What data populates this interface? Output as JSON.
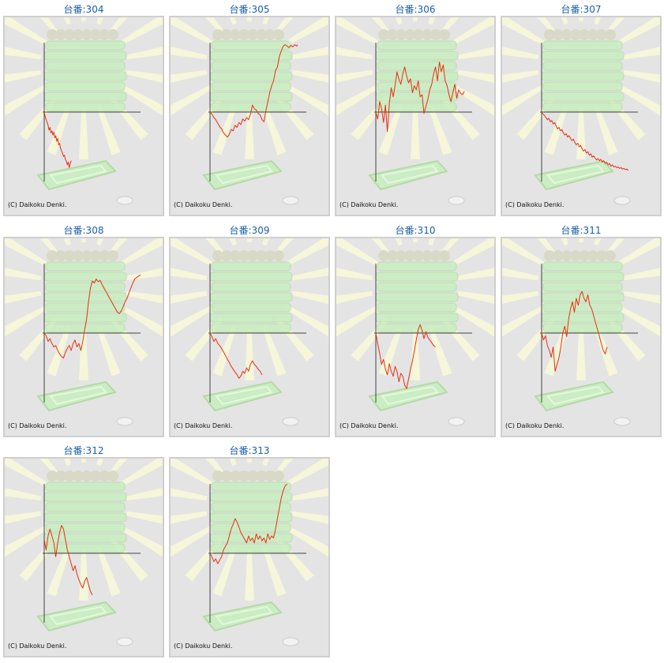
{
  "copyright_text": "(C) Daikoku Denki.",
  "colors": {
    "line": "#e83010",
    "axis": "#444444",
    "title": "#1a5fa8",
    "panel": "#e4e4e4",
    "art": "#c8eec0"
  },
  "chart_data": [
    {
      "type": "line",
      "title": "台番:304",
      "xlim": [
        0,
        100
      ],
      "ylim": [
        -100,
        100
      ],
      "x": [
        0,
        1,
        2,
        3,
        4,
        5,
        6,
        7,
        8,
        9,
        10,
        11,
        12,
        13,
        14,
        15,
        16,
        17,
        18,
        19,
        20,
        21,
        22,
        23,
        24,
        25,
        26,
        27,
        28
      ],
      "y": [
        0,
        -6,
        -11,
        -15,
        -19,
        -26,
        -22,
        -30,
        -27,
        -33,
        -29,
        -37,
        -34,
        -42,
        -38,
        -47,
        -45,
        -52,
        -56,
        -59,
        -64,
        -62,
        -68,
        -71,
        -76,
        -72,
        -80,
        -74,
        -70
      ]
    },
    {
      "type": "line",
      "title": "台番:305",
      "xlim": [
        0,
        100
      ],
      "ylim": [
        -100,
        100
      ],
      "x": [
        0,
        2,
        4,
        6,
        8,
        10,
        12,
        14,
        16,
        18,
        20,
        22,
        24,
        26,
        28,
        30,
        32,
        34,
        36,
        38,
        40,
        42,
        44,
        46,
        48,
        50,
        52,
        54,
        56,
        58,
        60,
        62,
        64,
        66,
        68,
        70,
        72,
        74,
        76,
        78,
        80,
        82,
        84,
        86,
        88,
        90,
        91
      ],
      "y": [
        0,
        -3,
        -8,
        -11,
        -16,
        -21,
        -24,
        -30,
        -33,
        -36,
        -32,
        -25,
        -27,
        -19,
        -22,
        -15,
        -18,
        -10,
        -13,
        -8,
        -11,
        -3,
        10,
        5,
        3,
        -2,
        -4,
        -11,
        -14,
        2,
        15,
        28,
        38,
        45,
        60,
        65,
        80,
        88,
        95,
        97,
        95,
        93,
        96,
        94,
        97,
        95,
        97
      ]
    },
    {
      "type": "line",
      "title": "台番:306",
      "xlim": [
        0,
        100
      ],
      "ylim": [
        -100,
        100
      ],
      "x": [
        0,
        2,
        4,
        6,
        8,
        10,
        12,
        14,
        16,
        18,
        20,
        22,
        24,
        26,
        28,
        30,
        32,
        34,
        36,
        38,
        40,
        42,
        44,
        46,
        48,
        50,
        52,
        54,
        56,
        58,
        60,
        62,
        64,
        66,
        68,
        70,
        72,
        74,
        76,
        78,
        80,
        82,
        84,
        86,
        88,
        90,
        92
      ],
      "y": [
        0,
        -10,
        15,
        5,
        -15,
        10,
        -28,
        12,
        35,
        22,
        38,
        58,
        47,
        40,
        55,
        65,
        52,
        42,
        48,
        28,
        38,
        32,
        45,
        22,
        25,
        -2,
        8,
        18,
        32,
        40,
        55,
        65,
        45,
        72,
        58,
        68,
        45,
        38,
        25,
        15,
        28,
        40,
        20,
        32,
        27,
        25,
        30
      ]
    },
    {
      "type": "line",
      "title": "台番:307",
      "xlim": [
        0,
        100
      ],
      "ylim": [
        -100,
        100
      ],
      "x": [
        0,
        1.5,
        3,
        4.5,
        6,
        7.5,
        9,
        10.5,
        12,
        13.5,
        15,
        16.5,
        18,
        19.5,
        21,
        22.5,
        24,
        25.5,
        27,
        28.5,
        30,
        31.5,
        33,
        34.5,
        36,
        37.5,
        39,
        40.5,
        42,
        43.5,
        45,
        46.5,
        48,
        49.5,
        51,
        52.5,
        54,
        55.5,
        57,
        58.5,
        60,
        61.5,
        63,
        64.5,
        66,
        67.5,
        69,
        70.5,
        72,
        73.5,
        75,
        76.5,
        78,
        79.5,
        81,
        82.5,
        84,
        85.5,
        87,
        88.5,
        90
      ],
      "y": [
        0,
        -3,
        -5,
        -8,
        -11,
        -9,
        -14,
        -12,
        -17,
        -15,
        -20,
        -24,
        -22,
        -27,
        -25,
        -30,
        -33,
        -31,
        -36,
        -34,
        -38,
        -41,
        -39,
        -44,
        -47,
        -45,
        -50,
        -48,
        -53,
        -56,
        -54,
        -59,
        -57,
        -62,
        -60,
        -65,
        -63,
        -66,
        -69,
        -67,
        -70,
        -68,
        -72,
        -70,
        -74,
        -72,
        -76,
        -74,
        -78,
        -76,
        -79,
        -78,
        -80,
        -79,
        -81,
        -80,
        -82,
        -81,
        -83,
        -82,
        -84
      ]
    },
    {
      "type": "line",
      "title": "台番:308",
      "xlim": [
        0,
        100
      ],
      "ylim": [
        -100,
        100
      ],
      "x": [
        0,
        2,
        4,
        6,
        8,
        10,
        12,
        14,
        16,
        18,
        20,
        22,
        24,
        26,
        28,
        30,
        32,
        34,
        36,
        38,
        40,
        42,
        44,
        46,
        48,
        50,
        52,
        54,
        56,
        58,
        60,
        62,
        64,
        66,
        68,
        70,
        72,
        74,
        76,
        78,
        80,
        82,
        84,
        86,
        88,
        90,
        92,
        94,
        96,
        98,
        100
      ],
      "y": [
        0,
        -4,
        -12,
        -8,
        -15,
        -20,
        -18,
        -25,
        -30,
        -34,
        -36,
        -28,
        -22,
        -18,
        -25,
        -15,
        -10,
        -20,
        -15,
        -25,
        -12,
        5,
        20,
        45,
        65,
        75,
        72,
        78,
        74,
        76,
        70,
        65,
        60,
        55,
        50,
        45,
        40,
        35,
        30,
        28,
        32,
        38,
        45,
        50,
        58,
        65,
        72,
        78,
        80,
        82,
        84
      ]
    },
    {
      "type": "line",
      "title": "台番:309",
      "xlim": [
        0,
        100
      ],
      "ylim": [
        -100,
        100
      ],
      "x": [
        0,
        2,
        4,
        6,
        8,
        10,
        12,
        14,
        16,
        18,
        20,
        22,
        24,
        26,
        28,
        30,
        32,
        34,
        36,
        38,
        40,
        42,
        44,
        46,
        48,
        50,
        52,
        54
      ],
      "y": [
        0,
        -5,
        -12,
        -8,
        -15,
        -18,
        -22,
        -27,
        -32,
        -38,
        -42,
        -48,
        -52,
        -56,
        -60,
        -65,
        -62,
        -55,
        -58,
        -50,
        -55,
        -45,
        -40,
        -45,
        -48,
        -52,
        -55,
        -60
      ]
    },
    {
      "type": "line",
      "title": "台番:310",
      "xlim": [
        0,
        100
      ],
      "ylim": [
        -100,
        100
      ],
      "x": [
        0,
        2,
        4,
        6,
        8,
        10,
        12,
        14,
        16,
        18,
        20,
        22,
        24,
        26,
        28,
        30,
        32,
        34,
        36,
        38,
        40,
        42,
        44,
        46,
        48,
        50,
        52,
        54,
        56,
        58,
        60,
        62
      ],
      "y": [
        0,
        -15,
        -30,
        -45,
        -38,
        -52,
        -60,
        -44,
        -55,
        -62,
        -48,
        -55,
        -70,
        -58,
        -62,
        -75,
        -80,
        -66,
        -52,
        -40,
        -26,
        -10,
        5,
        12,
        4,
        -8,
        2,
        -6,
        -10,
        -14,
        -18,
        -20
      ]
    },
    {
      "type": "line",
      "title": "台番:311",
      "xlim": [
        0,
        100
      ],
      "ylim": [
        -100,
        100
      ],
      "x": [
        0,
        2,
        4,
        6,
        8,
        10,
        12,
        14,
        16,
        18,
        20,
        22,
        24,
        26,
        28,
        30,
        32,
        34,
        36,
        38,
        40,
        42,
        44,
        46,
        48,
        50,
        52,
        54,
        56,
        58,
        60,
        62,
        64,
        66,
        68
      ],
      "y": [
        0,
        -10,
        -4,
        -18,
        -25,
        -35,
        -20,
        -55,
        -45,
        -35,
        -20,
        0,
        10,
        -5,
        20,
        35,
        45,
        30,
        50,
        40,
        55,
        60,
        50,
        45,
        55,
        40,
        35,
        25,
        15,
        5,
        -5,
        -15,
        -25,
        -30,
        -20
      ]
    },
    {
      "type": "line",
      "title": "台番:312",
      "xlim": [
        0,
        100
      ],
      "ylim": [
        -100,
        100
      ],
      "x": [
        0,
        2,
        4,
        6,
        8,
        10,
        12,
        14,
        16,
        18,
        20,
        22,
        24,
        26,
        28,
        30,
        32,
        34,
        36,
        38,
        40,
        42,
        44,
        46,
        48,
        50
      ],
      "y": [
        20,
        5,
        25,
        35,
        25,
        15,
        -5,
        15,
        30,
        40,
        35,
        20,
        5,
        -5,
        -15,
        -25,
        -18,
        -30,
        -38,
        -45,
        -50,
        -40,
        -35,
        -45,
        -55,
        -60
      ]
    },
    {
      "type": "line",
      "title": "台番:313",
      "xlim": [
        0,
        100
      ],
      "ylim": [
        -100,
        100
      ],
      "x": [
        0,
        2,
        4,
        6,
        8,
        10,
        12,
        14,
        16,
        18,
        20,
        22,
        24,
        26,
        28,
        30,
        32,
        34,
        36,
        38,
        40,
        42,
        44,
        46,
        48,
        50,
        52,
        54,
        56,
        58,
        60,
        62,
        64,
        66,
        68,
        70,
        72,
        74,
        76,
        78,
        80
      ],
      "y": [
        0,
        -5,
        -12,
        -8,
        -15,
        -10,
        -5,
        5,
        10,
        15,
        25,
        35,
        42,
        50,
        45,
        38,
        30,
        25,
        20,
        15,
        25,
        18,
        22,
        15,
        28,
        20,
        25,
        18,
        22,
        15,
        28,
        20,
        25,
        22,
        35,
        50,
        65,
        80,
        90,
        97,
        100
      ]
    }
  ]
}
